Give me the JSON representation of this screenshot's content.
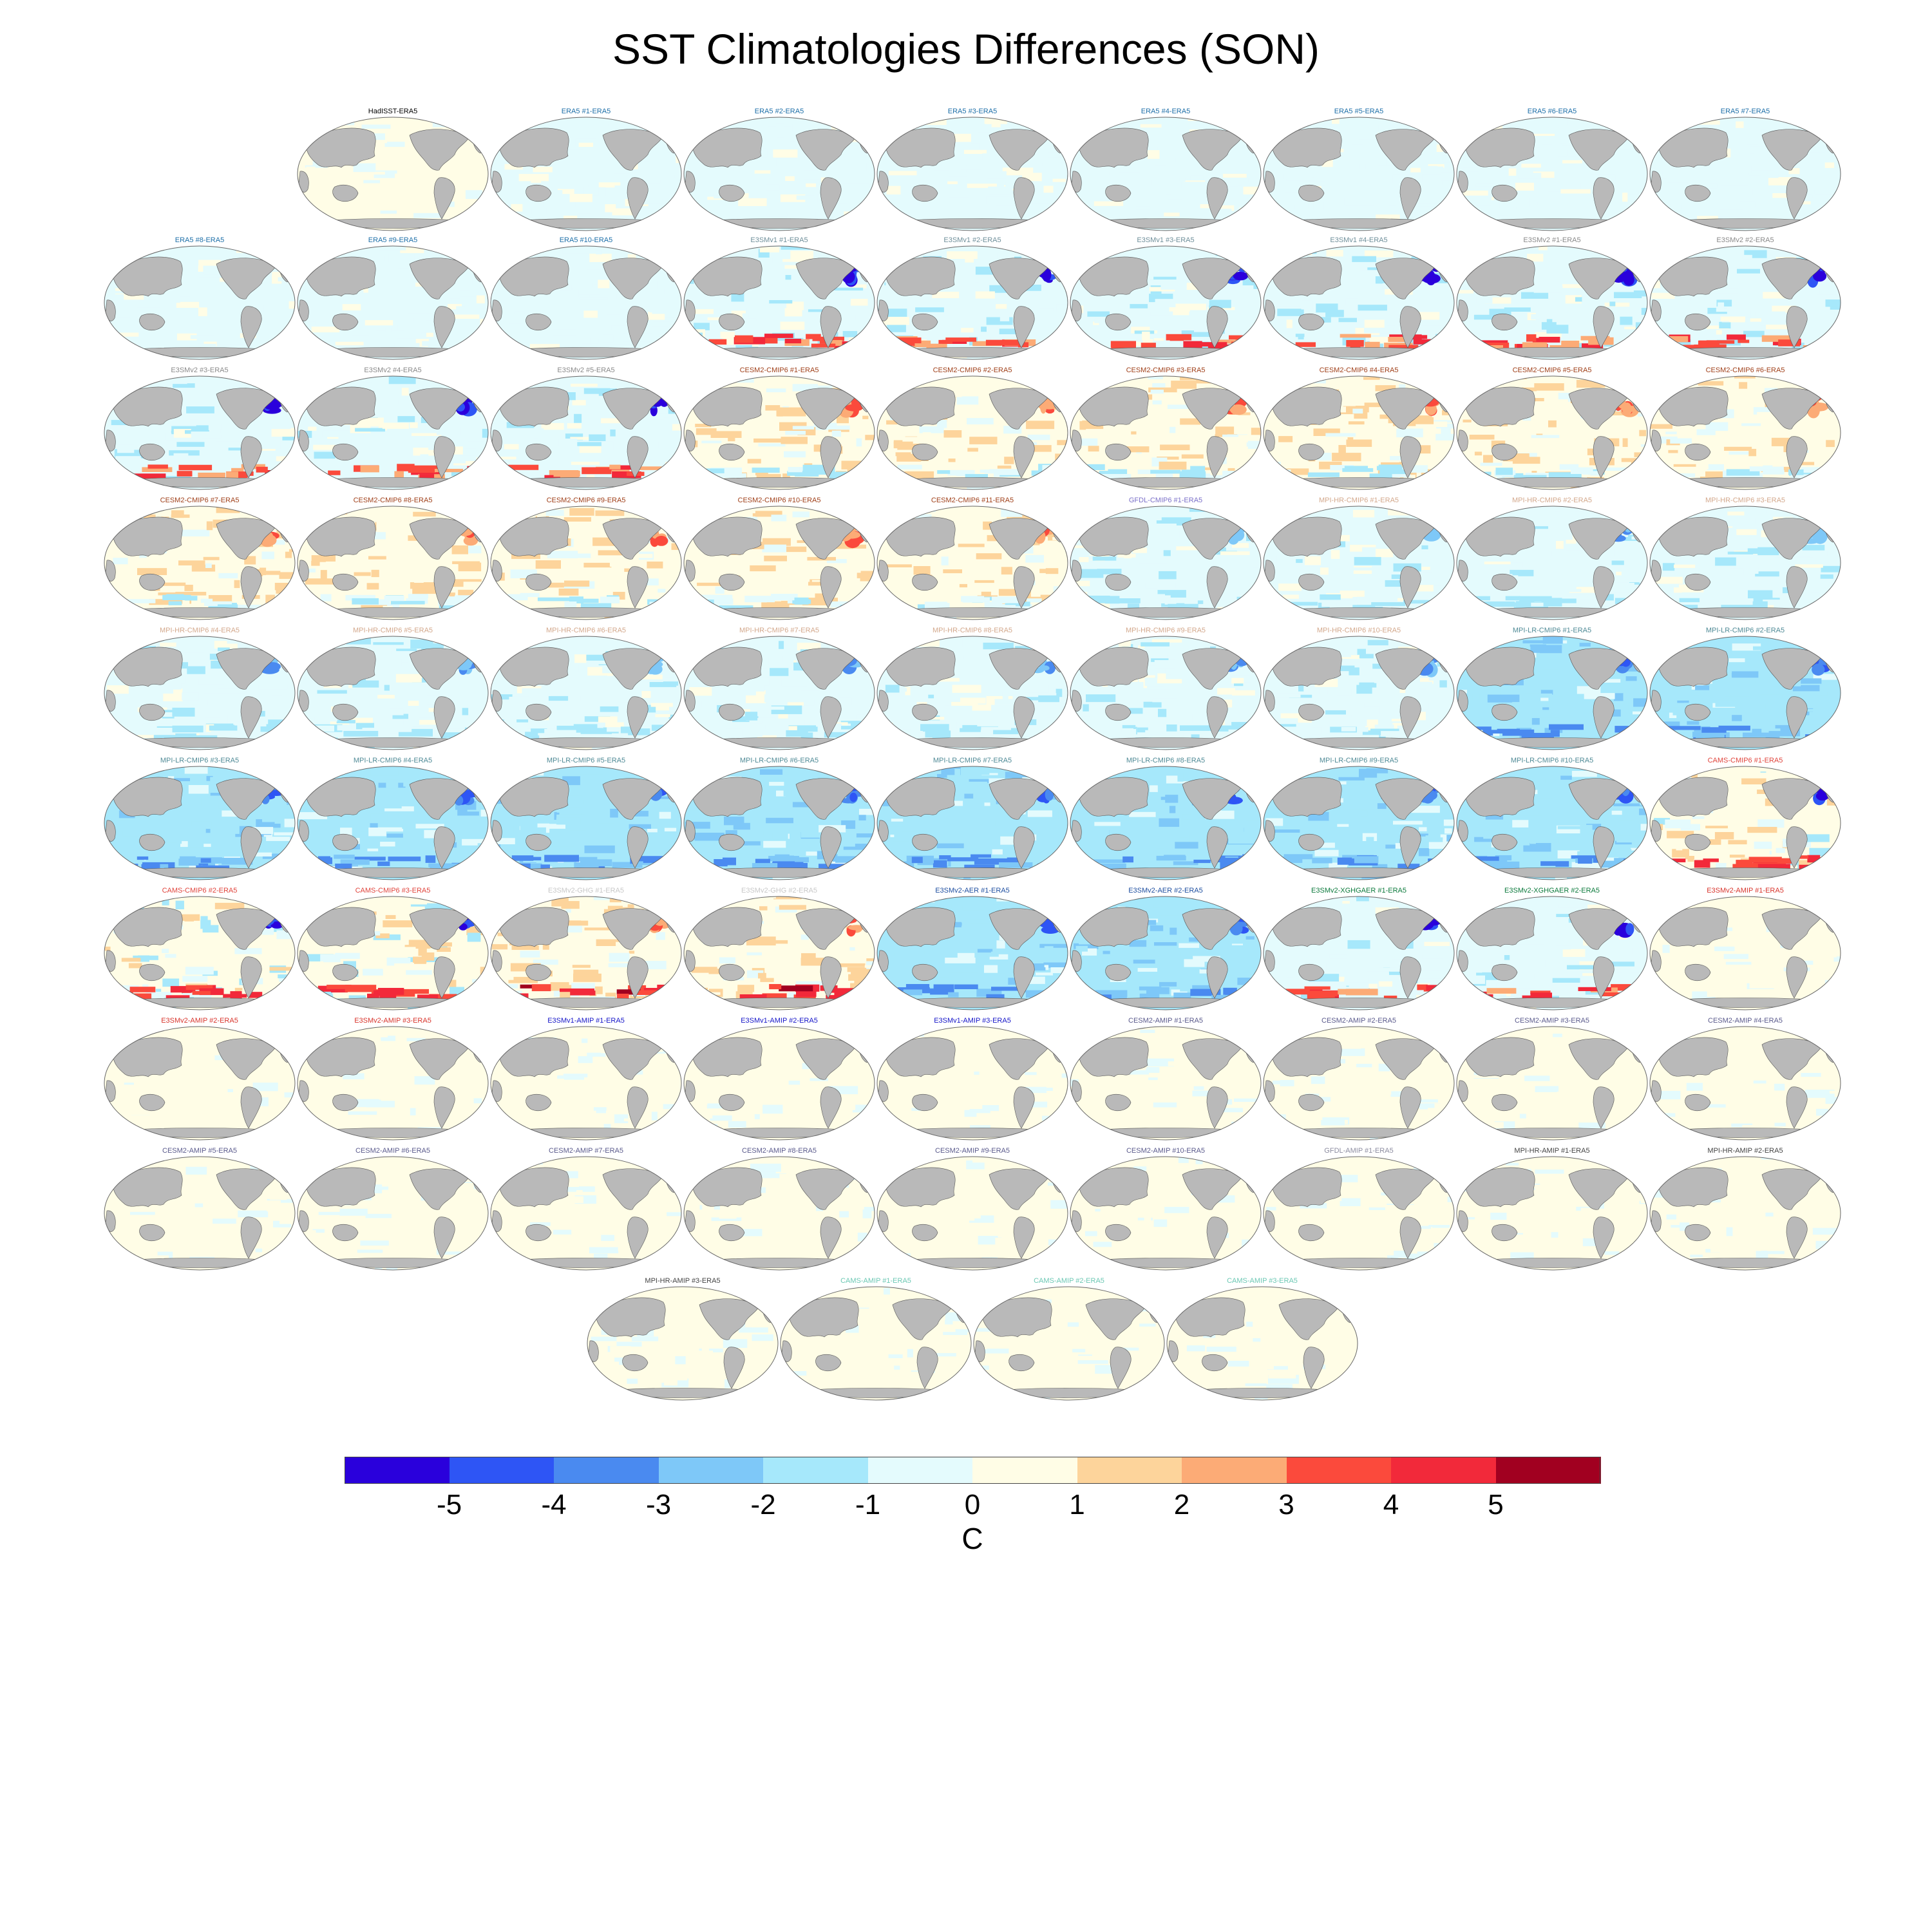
{
  "figure": {
    "title": "SST Climatologies Differences (SON)",
    "unit": "C"
  },
  "chart_data": {
    "type": "heatmap",
    "title": "SST Climatologies Differences (SON)",
    "projection": "global map (Pacific-centered), one panel per dataset",
    "colorbar": {
      "label": "C",
      "ticks": [
        "-5",
        "-4",
        "-3",
        "-2",
        "-1",
        "0",
        "1",
        "2",
        "3",
        "4",
        "5"
      ],
      "bin_colors": [
        "#2a00dc",
        "#2e55f5",
        "#4a8af0",
        "#7ec8f8",
        "#a6e8fb",
        "#e4fbfd",
        "#fffde6",
        "#fdd49b",
        "#fcab76",
        "#fb4a3c",
        "#f2293a",
        "#a10020"
      ]
    },
    "panels": [
      {
        "title": "HadISST-ERA5",
        "color": "#000000",
        "anomaly": "neutral"
      },
      {
        "title": "ERA5   #1-ERA5",
        "color": "#1d6fa8",
        "anomaly": "faint-cool"
      },
      {
        "title": "ERA5   #2-ERA5",
        "color": "#1d6fa8",
        "anomaly": "faint-cool"
      },
      {
        "title": "ERA5   #3-ERA5",
        "color": "#1d6fa8",
        "anomaly": "faint-cool"
      },
      {
        "title": "ERA5   #4-ERA5",
        "color": "#1d6fa8",
        "anomaly": "faint-cool"
      },
      {
        "title": "ERA5   #5-ERA5",
        "color": "#1d6fa8",
        "anomaly": "faint-cool"
      },
      {
        "title": "ERA5   #6-ERA5",
        "color": "#1d6fa8",
        "anomaly": "faint-cool"
      },
      {
        "title": "ERA5   #7-ERA5",
        "color": "#1d6fa8",
        "anomaly": "faint-cool"
      },
      {
        "title": "ERA5   #8-ERA5",
        "color": "#1d6fa8",
        "anomaly": "faint-cool"
      },
      {
        "title": "ERA5   #9-ERA5",
        "color": "#1d6fa8",
        "anomaly": "faint-cool"
      },
      {
        "title": "ERA5   #10-ERA5",
        "color": "#1d6fa8",
        "anomaly": "faint-cool"
      },
      {
        "title": "E3SMv1 #1-ERA5",
        "color": "#6f8f9a",
        "anomaly": "cool-warm-south"
      },
      {
        "title": "E3SMv1 #2-ERA5",
        "color": "#6f8f9a",
        "anomaly": "cool-warm-south"
      },
      {
        "title": "E3SMv1 #3-ERA5",
        "color": "#6f8f9a",
        "anomaly": "cool-warm-south"
      },
      {
        "title": "E3SMv1 #4-ERA5",
        "color": "#6f8f9a",
        "anomaly": "cool-warm-south"
      },
      {
        "title": "E3SMv2 #1-ERA5",
        "color": "#8a8a8a",
        "anomaly": "cool-warm-south"
      },
      {
        "title": "E3SMv2 #2-ERA5",
        "color": "#8a8a8a",
        "anomaly": "cool-warm-south"
      },
      {
        "title": "E3SMv2 #3-ERA5",
        "color": "#8a8a8a",
        "anomaly": "cool-warm-south"
      },
      {
        "title": "E3SMv2 #4-ERA5",
        "color": "#8a8a8a",
        "anomaly": "cool-warm-south"
      },
      {
        "title": "E3SMv2 #5-ERA5",
        "color": "#8a8a8a",
        "anomaly": "cool-warm-south"
      },
      {
        "title": "CESM2-CMIP6 #1-ERA5",
        "color": "#a0401a",
        "anomaly": "warm"
      },
      {
        "title": "CESM2-CMIP6 #2-ERA5",
        "color": "#a0401a",
        "anomaly": "warm"
      },
      {
        "title": "CESM2-CMIP6 #3-ERA5",
        "color": "#a0401a",
        "anomaly": "warm"
      },
      {
        "title": "CESM2-CMIP6 #4-ERA5",
        "color": "#a0401a",
        "anomaly": "warm"
      },
      {
        "title": "CESM2-CMIP6 #5-ERA5",
        "color": "#a0401a",
        "anomaly": "warm"
      },
      {
        "title": "CESM2-CMIP6 #6-ERA5",
        "color": "#a0401a",
        "anomaly": "warm"
      },
      {
        "title": "CESM2-CMIP6 #7-ERA5",
        "color": "#a0401a",
        "anomaly": "warm"
      },
      {
        "title": "CESM2-CMIP6 #8-ERA5",
        "color": "#a0401a",
        "anomaly": "warm"
      },
      {
        "title": "CESM2-CMIP6 #9-ERA5",
        "color": "#a0401a",
        "anomaly": "warm"
      },
      {
        "title": "CESM2-CMIP6 #10-ERA5",
        "color": "#a0401a",
        "anomaly": "warm"
      },
      {
        "title": "CESM2-CMIP6 #11-ERA5",
        "color": "#a0401a",
        "anomaly": "warm"
      },
      {
        "title": "GFDL-CMIP6 #1-ERA5",
        "color": "#7a6fc8",
        "anomaly": "cool"
      },
      {
        "title": "MPI-HR-CMIP6 #1-ERA5",
        "color": "#d3a88c",
        "anomaly": "cool"
      },
      {
        "title": "MPI-HR-CMIP6 #2-ERA5",
        "color": "#d3a88c",
        "anomaly": "cool"
      },
      {
        "title": "MPI-HR-CMIP6 #3-ERA5",
        "color": "#d3a88c",
        "anomaly": "cool"
      },
      {
        "title": "MPI-HR-CMIP6 #4-ERA5",
        "color": "#d3a88c",
        "anomaly": "cool"
      },
      {
        "title": "MPI-HR-CMIP6 #5-ERA5",
        "color": "#d3a88c",
        "anomaly": "cool"
      },
      {
        "title": "MPI-HR-CMIP6 #6-ERA5",
        "color": "#d3a88c",
        "anomaly": "cool"
      },
      {
        "title": "MPI-HR-CMIP6 #7-ERA5",
        "color": "#d3a88c",
        "anomaly": "cool"
      },
      {
        "title": "MPI-HR-CMIP6 #8-ERA5",
        "color": "#d3a88c",
        "anomaly": "cool"
      },
      {
        "title": "MPI-HR-CMIP6 #9-ERA5",
        "color": "#d3a88c",
        "anomaly": "cool"
      },
      {
        "title": "MPI-HR-CMIP6 #10-ERA5",
        "color": "#d3a88c",
        "anomaly": "cool"
      },
      {
        "title": "MPI-LR-CMIP6 #1-ERA5",
        "color": "#4f8a96",
        "anomaly": "strong-cool"
      },
      {
        "title": "MPI-LR-CMIP6 #2-ERA5",
        "color": "#4f8a96",
        "anomaly": "strong-cool"
      },
      {
        "title": "MPI-LR-CMIP6 #3-ERA5",
        "color": "#4f8a96",
        "anomaly": "strong-cool"
      },
      {
        "title": "MPI-LR-CMIP6 #4-ERA5",
        "color": "#4f8a96",
        "anomaly": "strong-cool"
      },
      {
        "title": "MPI-LR-CMIP6 #5-ERA5",
        "color": "#4f8a96",
        "anomaly": "strong-cool"
      },
      {
        "title": "MPI-LR-CMIP6 #6-ERA5",
        "color": "#4f8a96",
        "anomaly": "strong-cool"
      },
      {
        "title": "MPI-LR-CMIP6 #7-ERA5",
        "color": "#4f8a96",
        "anomaly": "strong-cool"
      },
      {
        "title": "MPI-LR-CMIP6 #8-ERA5",
        "color": "#4f8a96",
        "anomaly": "strong-cool"
      },
      {
        "title": "MPI-LR-CMIP6 #9-ERA5",
        "color": "#4f8a96",
        "anomaly": "strong-cool"
      },
      {
        "title": "MPI-LR-CMIP6 #10-ERA5",
        "color": "#4f8a96",
        "anomaly": "strong-cool"
      },
      {
        "title": "CAMS-CMIP6 #1-ERA5",
        "color": "#e0443c",
        "anomaly": "mixed-strong"
      },
      {
        "title": "CAMS-CMIP6 #2-ERA5",
        "color": "#e0443c",
        "anomaly": "mixed-strong"
      },
      {
        "title": "CAMS-CMIP6 #3-ERA5",
        "color": "#e0443c",
        "anomaly": "mixed-strong"
      },
      {
        "title": "E3SMv2-GHG #1-ERA5",
        "color": "#c8c8c8",
        "anomaly": "warm-strong"
      },
      {
        "title": "E3SMv2-GHG #2-ERA5",
        "color": "#c8c8c8",
        "anomaly": "warm-strong"
      },
      {
        "title": "E3SMv2-AER #1-ERA5",
        "color": "#1f4fa0",
        "anomaly": "strong-cool"
      },
      {
        "title": "E3SMv2-AER #2-ERA5",
        "color": "#1f4fa0",
        "anomaly": "strong-cool"
      },
      {
        "title": "E3SMv2-XGHGAER #1-ERA5",
        "color": "#0c7a3c",
        "anomaly": "cool-warm-south"
      },
      {
        "title": "E3SMv2-XGHGAER #2-ERA5",
        "color": "#0c7a3c",
        "anomaly": "cool-warm-south"
      },
      {
        "title": "E3SMv2-AMIP #1-ERA5",
        "color": "#d8342c",
        "anomaly": "neutral"
      },
      {
        "title": "E3SMv2-AMIP #2-ERA5",
        "color": "#d8342c",
        "anomaly": "neutral"
      },
      {
        "title": "E3SMv2-AMIP #3-ERA5",
        "color": "#d8342c",
        "anomaly": "neutral"
      },
      {
        "title": "E3SMv1-AMIP #1-ERA5",
        "color": "#1414c8",
        "anomaly": "neutral"
      },
      {
        "title": "E3SMv1-AMIP #2-ERA5",
        "color": "#1414c8",
        "anomaly": "neutral"
      },
      {
        "title": "E3SMv1-AMIP #3-ERA5",
        "color": "#1414c8",
        "anomaly": "neutral"
      },
      {
        "title": "CESM2-AMIP #1-ERA5",
        "color": "#5a5a8c",
        "anomaly": "neutral"
      },
      {
        "title": "CESM2-AMIP #2-ERA5",
        "color": "#5a5a8c",
        "anomaly": "neutral"
      },
      {
        "title": "CESM2-AMIP #3-ERA5",
        "color": "#5a5a8c",
        "anomaly": "neutral"
      },
      {
        "title": "CESM2-AMIP #4-ERA5",
        "color": "#5a5a8c",
        "anomaly": "neutral"
      },
      {
        "title": "CESM2-AMIP #5-ERA5",
        "color": "#5a5a8c",
        "anomaly": "neutral"
      },
      {
        "title": "CESM2-AMIP #6-ERA5",
        "color": "#5a5a8c",
        "anomaly": "neutral"
      },
      {
        "title": "CESM2-AMIP #7-ERA5",
        "color": "#5a5a8c",
        "anomaly": "neutral"
      },
      {
        "title": "CESM2-AMIP #8-ERA5",
        "color": "#5a5a8c",
        "anomaly": "neutral"
      },
      {
        "title": "CESM2-AMIP #9-ERA5",
        "color": "#5a5a8c",
        "anomaly": "neutral"
      },
      {
        "title": "CESM2-AMIP #10-ERA5",
        "color": "#5a5a8c",
        "anomaly": "neutral"
      },
      {
        "title": "GFDL-AMIP #1-ERA5",
        "color": "#8c8ca0",
        "anomaly": "neutral"
      },
      {
        "title": "MPI-HR-AMIP #1-ERA5",
        "color": "#444444",
        "anomaly": "neutral"
      },
      {
        "title": "MPI-HR-AMIP #2-ERA5",
        "color": "#444444",
        "anomaly": "neutral"
      },
      {
        "title": "MPI-HR-AMIP #3-ERA5",
        "color": "#444444",
        "anomaly": "neutral"
      },
      {
        "title": "CAMS-AMIP #1-ERA5",
        "color": "#6cc8b4",
        "anomaly": "neutral"
      },
      {
        "title": "CAMS-AMIP #2-ERA5",
        "color": "#6cc8b4",
        "anomaly": "neutral"
      },
      {
        "title": "CAMS-AMIP #3-ERA5",
        "color": "#6cc8b4",
        "anomaly": "neutral"
      }
    ]
  }
}
